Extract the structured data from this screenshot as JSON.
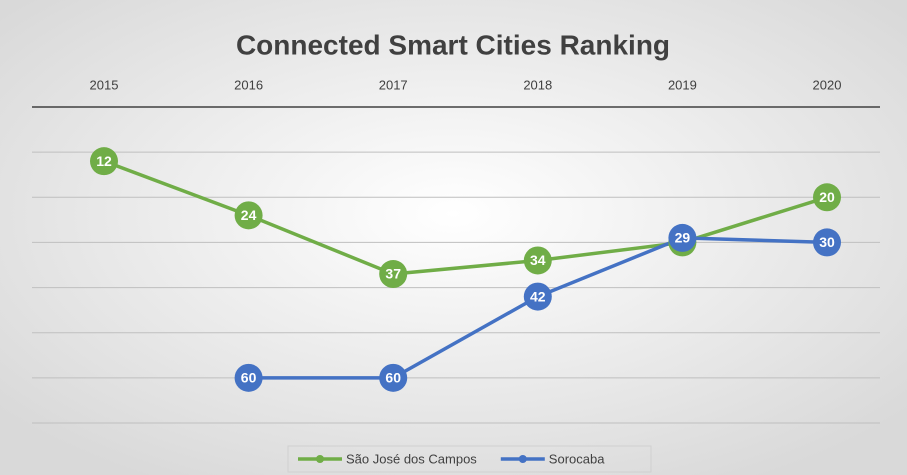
{
  "chart_data": {
    "type": "line",
    "title": "Connected Smart Cities Ranking",
    "categories": [
      "2015",
      "2016",
      "2017",
      "2018",
      "2019",
      "2020"
    ],
    "series": [
      {
        "name": "São José dos Campos",
        "color": "#70ad47",
        "values": [
          12,
          24,
          37,
          34,
          30,
          20
        ]
      },
      {
        "name": "Sorocaba",
        "color": "#4472c4",
        "values": [
          null,
          60,
          60,
          42,
          29,
          30
        ]
      }
    ],
    "ylim": [
      70,
      0
    ],
    "yticks": [
      0,
      10,
      20,
      30,
      40,
      50,
      60,
      70
    ],
    "show_y_tick_labels": false,
    "grid": true,
    "legend": "bottom",
    "data_labels": true
  }
}
